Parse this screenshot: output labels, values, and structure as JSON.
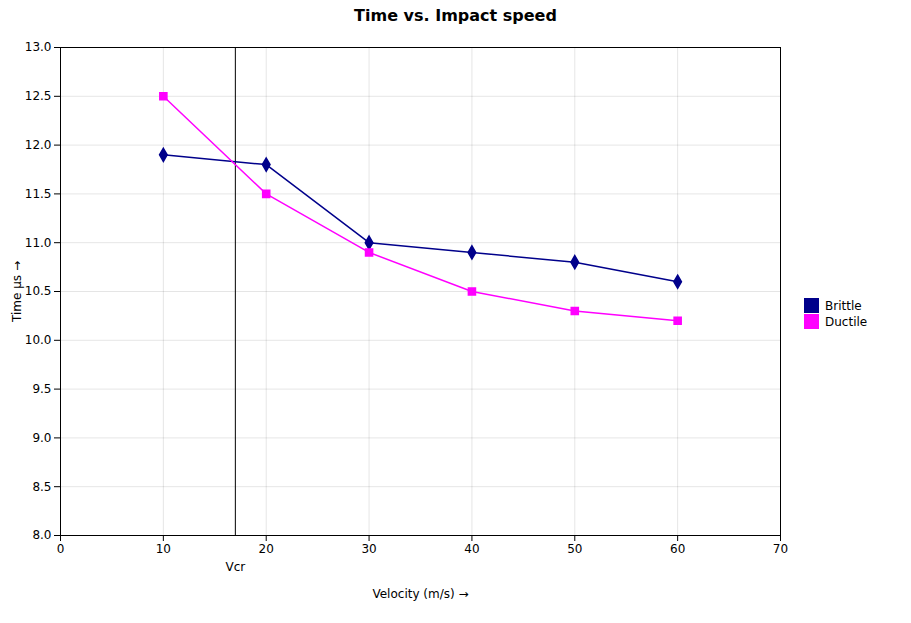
{
  "chart_data": {
    "type": "line",
    "title": "Time vs. Impact speed",
    "x_label": "Velocity (m/s)",
    "y_label": "Time μs",
    "x": [
      10,
      20,
      30,
      40,
      50,
      60
    ],
    "series": [
      {
        "name": "Brittle",
        "color": "#00008B",
        "marker": "diamond",
        "values": [
          11.9,
          11.8,
          11.0,
          10.9,
          10.8,
          10.6
        ]
      },
      {
        "name": "Ductile",
        "color": "#FF00FF",
        "marker": "square",
        "values": [
          12.5,
          11.5,
          10.9,
          10.5,
          10.3,
          10.2
        ]
      }
    ],
    "xlim": [
      0,
      70
    ],
    "ylim": [
      8,
      13
    ],
    "xticks": [
      0,
      10,
      20,
      30,
      40,
      50,
      60,
      70
    ],
    "yticks": [
      8,
      8.5,
      9,
      9.5,
      10,
      10.5,
      11,
      11.5,
      12,
      12.5,
      13
    ],
    "annotations": [
      {
        "text": "Vcr",
        "x": 17
      }
    ],
    "grid": true,
    "legend": "right"
  }
}
